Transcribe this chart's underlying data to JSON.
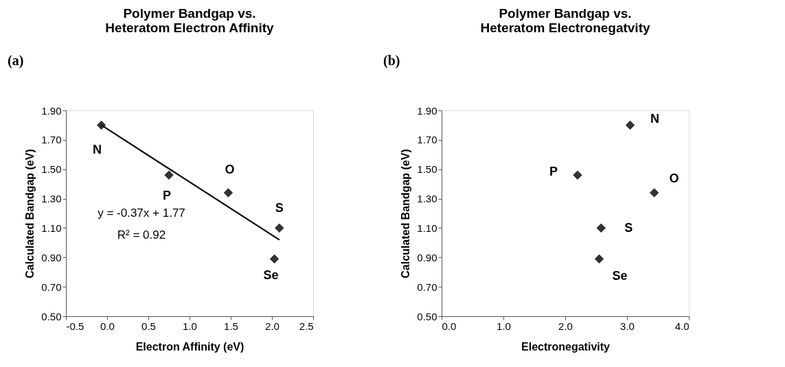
{
  "chart_data": [
    {
      "type": "scatter",
      "title": "Polymer Bandgap vs.\nHeteratom Electron Affinity",
      "xlabel": "Electron Affinity (eV)",
      "ylabel": "Calculated Bandgap (eV)",
      "marker": "diamond",
      "line_style": "solid",
      "grid": false,
      "xlim": [
        -0.5,
        2.5
      ],
      "xticks": [
        {
          "value": -0.5,
          "label": "-0.5"
        },
        {
          "value": 0,
          "label": "0.0"
        },
        {
          "value": 0.5,
          "label": "0.5"
        },
        {
          "value": 1,
          "label": "1.0"
        },
        {
          "value": 1.5,
          "label": "1.5"
        },
        {
          "value": 2,
          "label": "2.0"
        },
        {
          "value": 2.5,
          "label": "2.5"
        }
      ],
      "ylim": [
        0.5,
        1.9
      ],
      "yticks": [
        {
          "value": 0.5,
          "label": "0.50"
        },
        {
          "value": 0.7,
          "label": "0.70"
        },
        {
          "value": 0.9,
          "label": "0.90"
        },
        {
          "value": 1.1,
          "label": "1.10"
        },
        {
          "value": 1.3,
          "label": "1.30"
        },
        {
          "value": 1.5,
          "label": "1.50"
        },
        {
          "value": 1.7,
          "label": "1.70"
        },
        {
          "value": 1.9,
          "label": "1.90"
        }
      ],
      "series": [
        {
          "color": "#333333",
          "x": [
            -0.07,
            0.75,
            1.47,
            2.09,
            2.03
          ],
          "values": [
            1.8,
            1.46,
            1.34,
            1.1,
            0.89
          ]
        },
        {
          "type": "line",
          "marker": "none",
          "color": "#000000",
          "x": [
            -0.07,
            2.09
          ],
          "values": [
            1.8,
            1.02
          ]
        }
      ],
      "annotations": [
        "(a)",
        "y = -0.37x + 1.77",
        "R² = 0.92",
        {
          "text": "N",
          "x": -0.07,
          "y": 1.8
        },
        {
          "text": "P",
          "x": 0.75,
          "y": 1.46
        },
        {
          "text": "O",
          "x": 1.47,
          "y": 1.34
        },
        {
          "text": "S",
          "x": 2.09,
          "y": 1.1
        },
        {
          "text": "Se",
          "x": 2.03,
          "y": 0.89
        }
      ]
    },
    {
      "type": "scatter",
      "title": "Polymer Bandgap vs.\nHeteratom Electronegatvity",
      "xlabel": "Electronegativity",
      "ylabel": "Calculated Bandgap (eV)",
      "marker": "diamond",
      "grid": false,
      "xlim": [
        0,
        4
      ],
      "xticks": [
        {
          "value": 0,
          "label": "0.0"
        },
        {
          "value": 1,
          "label": "1.0"
        },
        {
          "value": 2,
          "label": "2.0"
        },
        {
          "value": 3,
          "label": "3.0"
        },
        {
          "value": 4,
          "label": "4.0"
        }
      ],
      "ylim": [
        0.5,
        1.9
      ],
      "yticks": [
        {
          "value": 0.5,
          "label": "0.50"
        },
        {
          "value": 0.7,
          "label": "0.70"
        },
        {
          "value": 0.9,
          "label": "0.90"
        },
        {
          "value": 1.1,
          "label": "1.10"
        },
        {
          "value": 1.3,
          "label": "1.30"
        },
        {
          "value": 1.5,
          "label": "1.50"
        },
        {
          "value": 1.7,
          "label": "1.70"
        },
        {
          "value": 1.9,
          "label": "1.90"
        }
      ],
      "series": [
        {
          "color": "#333333",
          "x": [
            3.05,
            2.2,
            3.44,
            2.58,
            2.55
          ],
          "values": [
            1.8,
            1.46,
            1.34,
            1.1,
            0.89
          ]
        }
      ],
      "annotations": [
        "(b)",
        {
          "text": "N",
          "x": 3.05,
          "y": 1.8
        },
        {
          "text": "P",
          "x": 2.2,
          "y": 1.46
        },
        {
          "text": "O",
          "x": 3.44,
          "y": 1.34
        },
        {
          "text": "S",
          "x": 2.58,
          "y": 1.1
        },
        {
          "text": "Se",
          "x": 2.55,
          "y": 0.89
        }
      ]
    }
  ]
}
